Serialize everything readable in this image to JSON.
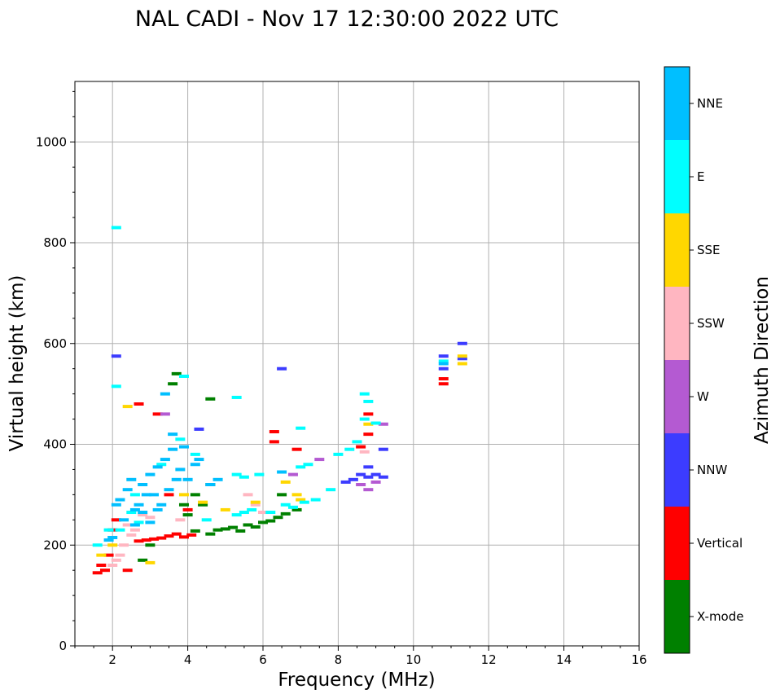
{
  "chart_data": {
    "type": "scatter",
    "title": "NAL CADI - Nov 17 12:30:00 2022 UTC",
    "xlabel": "Frequency (MHz)",
    "ylabel": "Virtual height (km)",
    "xlim": [
      1,
      16
    ],
    "ylim": [
      0,
      1120
    ],
    "xticks": [
      2,
      4,
      6,
      8,
      10,
      12,
      14,
      16
    ],
    "yticks": [
      0,
      200,
      400,
      600,
      800,
      1000
    ],
    "grid": true,
    "colorbar": {
      "label": "Azimuth Direction",
      "categories": [
        {
          "name": "X-mode",
          "color": "#008000"
        },
        {
          "name": "Vertical",
          "color": "#ff0000"
        },
        {
          "name": "NNW",
          "color": "#3c3cff"
        },
        {
          "name": "W",
          "color": "#b45ad2"
        },
        {
          "name": "SSW",
          "color": "#ffb6c1"
        },
        {
          "name": "SSE",
          "color": "#ffd700"
        },
        {
          "name": "E",
          "color": "#00ffff"
        },
        {
          "name": "NNE",
          "color": "#00bfff"
        }
      ]
    },
    "series": [
      {
        "name": "X-mode",
        "points": [
          [
            4.2,
            228
          ],
          [
            4.6,
            222
          ],
          [
            4.8,
            230
          ],
          [
            5.0,
            232
          ],
          [
            5.2,
            235
          ],
          [
            5.4,
            228
          ],
          [
            5.6,
            240
          ],
          [
            5.8,
            236
          ],
          [
            6.0,
            245
          ],
          [
            6.2,
            248
          ],
          [
            6.4,
            255
          ],
          [
            6.6,
            262
          ],
          [
            6.9,
            270
          ],
          [
            4.0,
            260
          ],
          [
            4.2,
            300
          ],
          [
            4.4,
            280
          ],
          [
            4.6,
            320
          ],
          [
            3.9,
            280
          ],
          [
            3.6,
            520
          ],
          [
            3.7,
            540
          ],
          [
            2.8,
            170
          ],
          [
            3.0,
            200
          ],
          [
            4.6,
            490
          ],
          [
            6.5,
            300
          ]
        ]
      },
      {
        "name": "Vertical",
        "points": [
          [
            1.6,
            145
          ],
          [
            1.7,
            160
          ],
          [
            1.8,
            150
          ],
          [
            1.9,
            180
          ],
          [
            2.0,
            230
          ],
          [
            2.1,
            250
          ],
          [
            2.7,
            208
          ],
          [
            2.9,
            210
          ],
          [
            3.1,
            212
          ],
          [
            3.3,
            214
          ],
          [
            3.5,
            218
          ],
          [
            3.7,
            222
          ],
          [
            3.9,
            216
          ],
          [
            4.1,
            220
          ],
          [
            3.2,
            460
          ],
          [
            2.7,
            480
          ],
          [
            4.0,
            270
          ],
          [
            3.5,
            300
          ],
          [
            6.3,
            425
          ],
          [
            6.3,
            405
          ],
          [
            6.9,
            390
          ],
          [
            8.6,
            395
          ],
          [
            8.8,
            420
          ],
          [
            8.8,
            460
          ],
          [
            10.8,
            520
          ],
          [
            10.8,
            530
          ],
          [
            2.4,
            150
          ]
        ]
      },
      {
        "name": "NNW",
        "points": [
          [
            8.2,
            325
          ],
          [
            8.4,
            330
          ],
          [
            8.6,
            340
          ],
          [
            8.8,
            335
          ],
          [
            9.0,
            340
          ],
          [
            9.2,
            335
          ],
          [
            9.2,
            390
          ],
          [
            8.8,
            355
          ],
          [
            10.8,
            550
          ],
          [
            10.8,
            575
          ],
          [
            11.3,
            570
          ],
          [
            11.3,
            600
          ],
          [
            6.5,
            550
          ],
          [
            4.3,
            430
          ],
          [
            2.1,
            575
          ]
        ]
      },
      {
        "name": "W",
        "points": [
          [
            8.8,
            310
          ],
          [
            8.6,
            320
          ],
          [
            9.0,
            325
          ],
          [
            9.2,
            440
          ],
          [
            7.5,
            370
          ],
          [
            3.4,
            460
          ],
          [
            6.8,
            340
          ]
        ]
      },
      {
        "name": "SSW",
        "points": [
          [
            2.3,
            200
          ],
          [
            2.5,
            220
          ],
          [
            2.2,
            180
          ],
          [
            2.4,
            240
          ],
          [
            2.6,
            230
          ],
          [
            2.8,
            260
          ],
          [
            3.0,
            255
          ],
          [
            5.8,
            280
          ],
          [
            6.0,
            265
          ],
          [
            5.6,
            300
          ],
          [
            3.8,
            250
          ],
          [
            2.1,
            170
          ],
          [
            2.0,
            160
          ],
          [
            8.7,
            385
          ]
        ]
      },
      {
        "name": "SSE",
        "points": [
          [
            1.7,
            180
          ],
          [
            2.0,
            200
          ],
          [
            3.0,
            165
          ],
          [
            4.4,
            285
          ],
          [
            5.0,
            270
          ],
          [
            5.8,
            285
          ],
          [
            6.6,
            325
          ],
          [
            6.9,
            300
          ],
          [
            7.0,
            290
          ],
          [
            8.8,
            440
          ],
          [
            11.3,
            575
          ],
          [
            11.3,
            560
          ],
          [
            2.4,
            475
          ],
          [
            3.9,
            300
          ]
        ]
      },
      {
        "name": "E",
        "points": [
          [
            5.3,
            340
          ],
          [
            5.5,
            335
          ],
          [
            5.9,
            340
          ],
          [
            6.2,
            265
          ],
          [
            6.6,
            280
          ],
          [
            7.0,
            355
          ],
          [
            7.2,
            360
          ],
          [
            7.4,
            290
          ],
          [
            7.8,
            310
          ],
          [
            8.0,
            380
          ],
          [
            8.3,
            390
          ],
          [
            8.5,
            405
          ],
          [
            8.7,
            450
          ],
          [
            8.8,
            485
          ],
          [
            9.0,
            442
          ],
          [
            10.8,
            565
          ],
          [
            5.3,
            260
          ],
          [
            5.5,
            265
          ],
          [
            5.7,
            270
          ],
          [
            6.8,
            275
          ],
          [
            7.1,
            285
          ],
          [
            3.8,
            410
          ],
          [
            7.0,
            432
          ],
          [
            4.5,
            250
          ],
          [
            2.2,
            230
          ],
          [
            2.5,
            265
          ],
          [
            2.7,
            245
          ],
          [
            1.6,
            200
          ],
          [
            1.9,
            230
          ],
          [
            2.6,
            300
          ],
          [
            3.3,
            360
          ],
          [
            4.2,
            380
          ],
          [
            2.1,
            515
          ],
          [
            5.3,
            493
          ],
          [
            3.9,
            535
          ],
          [
            2.1,
            830
          ],
          [
            8.7,
            500
          ]
        ]
      },
      {
        "name": "NNE",
        "points": [
          [
            2.2,
            290
          ],
          [
            2.4,
            310
          ],
          [
            2.6,
            270
          ],
          [
            2.8,
            320
          ],
          [
            3.0,
            340
          ],
          [
            3.2,
            355
          ],
          [
            3.4,
            370
          ],
          [
            3.6,
            390
          ],
          [
            3.8,
            350
          ],
          [
            4.0,
            330
          ],
          [
            4.2,
            360
          ],
          [
            2.3,
            250
          ],
          [
            2.7,
            280
          ],
          [
            3.1,
            300
          ],
          [
            3.3,
            280
          ],
          [
            3.5,
            310
          ],
          [
            3.7,
            330
          ],
          [
            3.9,
            395
          ],
          [
            4.3,
            370
          ],
          [
            2.5,
            330
          ],
          [
            2.9,
            300
          ],
          [
            3.6,
            420
          ],
          [
            3.4,
            500
          ],
          [
            2.0,
            215
          ],
          [
            1.9,
            210
          ],
          [
            2.6,
            240
          ],
          [
            2.8,
            265
          ],
          [
            3.0,
            245
          ],
          [
            3.2,
            270
          ],
          [
            4.6,
            320
          ],
          [
            4.8,
            330
          ],
          [
            10.8,
            560
          ],
          [
            6.5,
            345
          ],
          [
            2.1,
            280
          ]
        ]
      }
    ]
  }
}
